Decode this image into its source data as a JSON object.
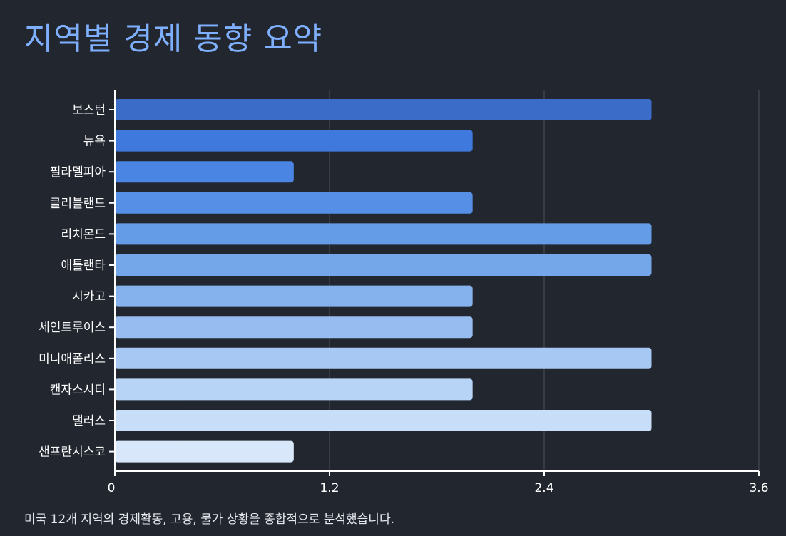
{
  "page": {
    "title": "지역별 경제 동향 요약",
    "footnote": "미국 12개 지역의 경제활동, 고용, 물가 상황을 종합적으로 분석했습니다."
  },
  "chart_data": {
    "type": "bar",
    "orientation": "horizontal",
    "categories": [
      "보스턴",
      "뉴욕",
      "필라델피아",
      "클리블랜드",
      "리치몬드",
      "애틀랜타",
      "시카고",
      "세인트루이스",
      "미니애폴리스",
      "캔자스시티",
      "댈러스",
      "샌프란시스코"
    ],
    "values": [
      3,
      2,
      1,
      2,
      3,
      3,
      2,
      2,
      3,
      2,
      3,
      1
    ],
    "colors": [
      "#3a6cc8",
      "#3f79de",
      "#4a85e3",
      "#5690e6",
      "#659ce8",
      "#74a7ea",
      "#85b2ed",
      "#97bdf0",
      "#a7c8f3",
      "#b7d3f5",
      "#c8ddf7",
      "#d9e7fa"
    ],
    "xlim": [
      0,
      3.6
    ],
    "xticks": [
      0,
      1.2,
      2.4,
      3.6
    ],
    "xtick_labels": [
      "0",
      "1.2",
      "2.4",
      "3.6"
    ],
    "grid": "vertical",
    "xlabel": "",
    "ylabel": ""
  }
}
